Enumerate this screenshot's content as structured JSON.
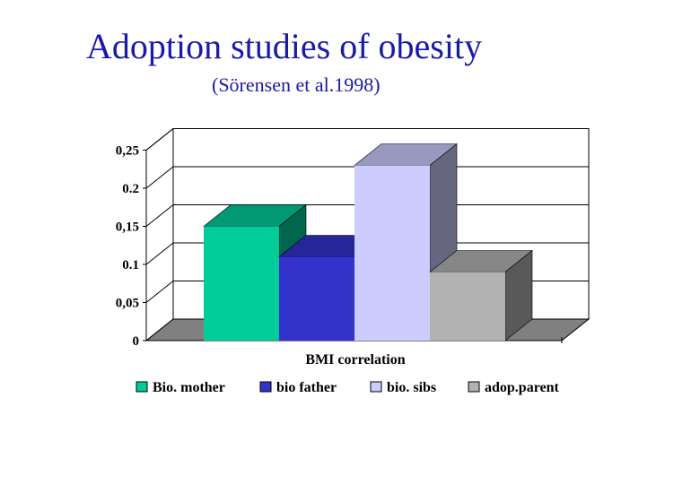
{
  "title": "Adoption studies of obesity",
  "subtitle": "(Sörensen et al.1998)",
  "chart_data": {
    "type": "bar",
    "view": "3d",
    "xlabel": "BMI correlation",
    "ylabel": "",
    "ylim": [
      0,
      0.25
    ],
    "yticks": [
      "0",
      "0,05",
      "0.1",
      "0,15",
      "0.2",
      "0,25"
    ],
    "yticks_values": [
      0,
      0.05,
      0.1,
      0.15,
      0.2,
      0.25
    ],
    "grid": true,
    "legend_position": "bottom",
    "series": [
      {
        "name": "Bio. mother",
        "value": 0.15,
        "color": "#00cc99"
      },
      {
        "name": "bio father",
        "value": 0.11,
        "color": "#3333cc"
      },
      {
        "name": "bio. sibs",
        "value": 0.23,
        "color": "#ccccff"
      },
      {
        "name": "adop.parent",
        "value": 0.09,
        "color": "#b2b2b2"
      }
    ]
  }
}
